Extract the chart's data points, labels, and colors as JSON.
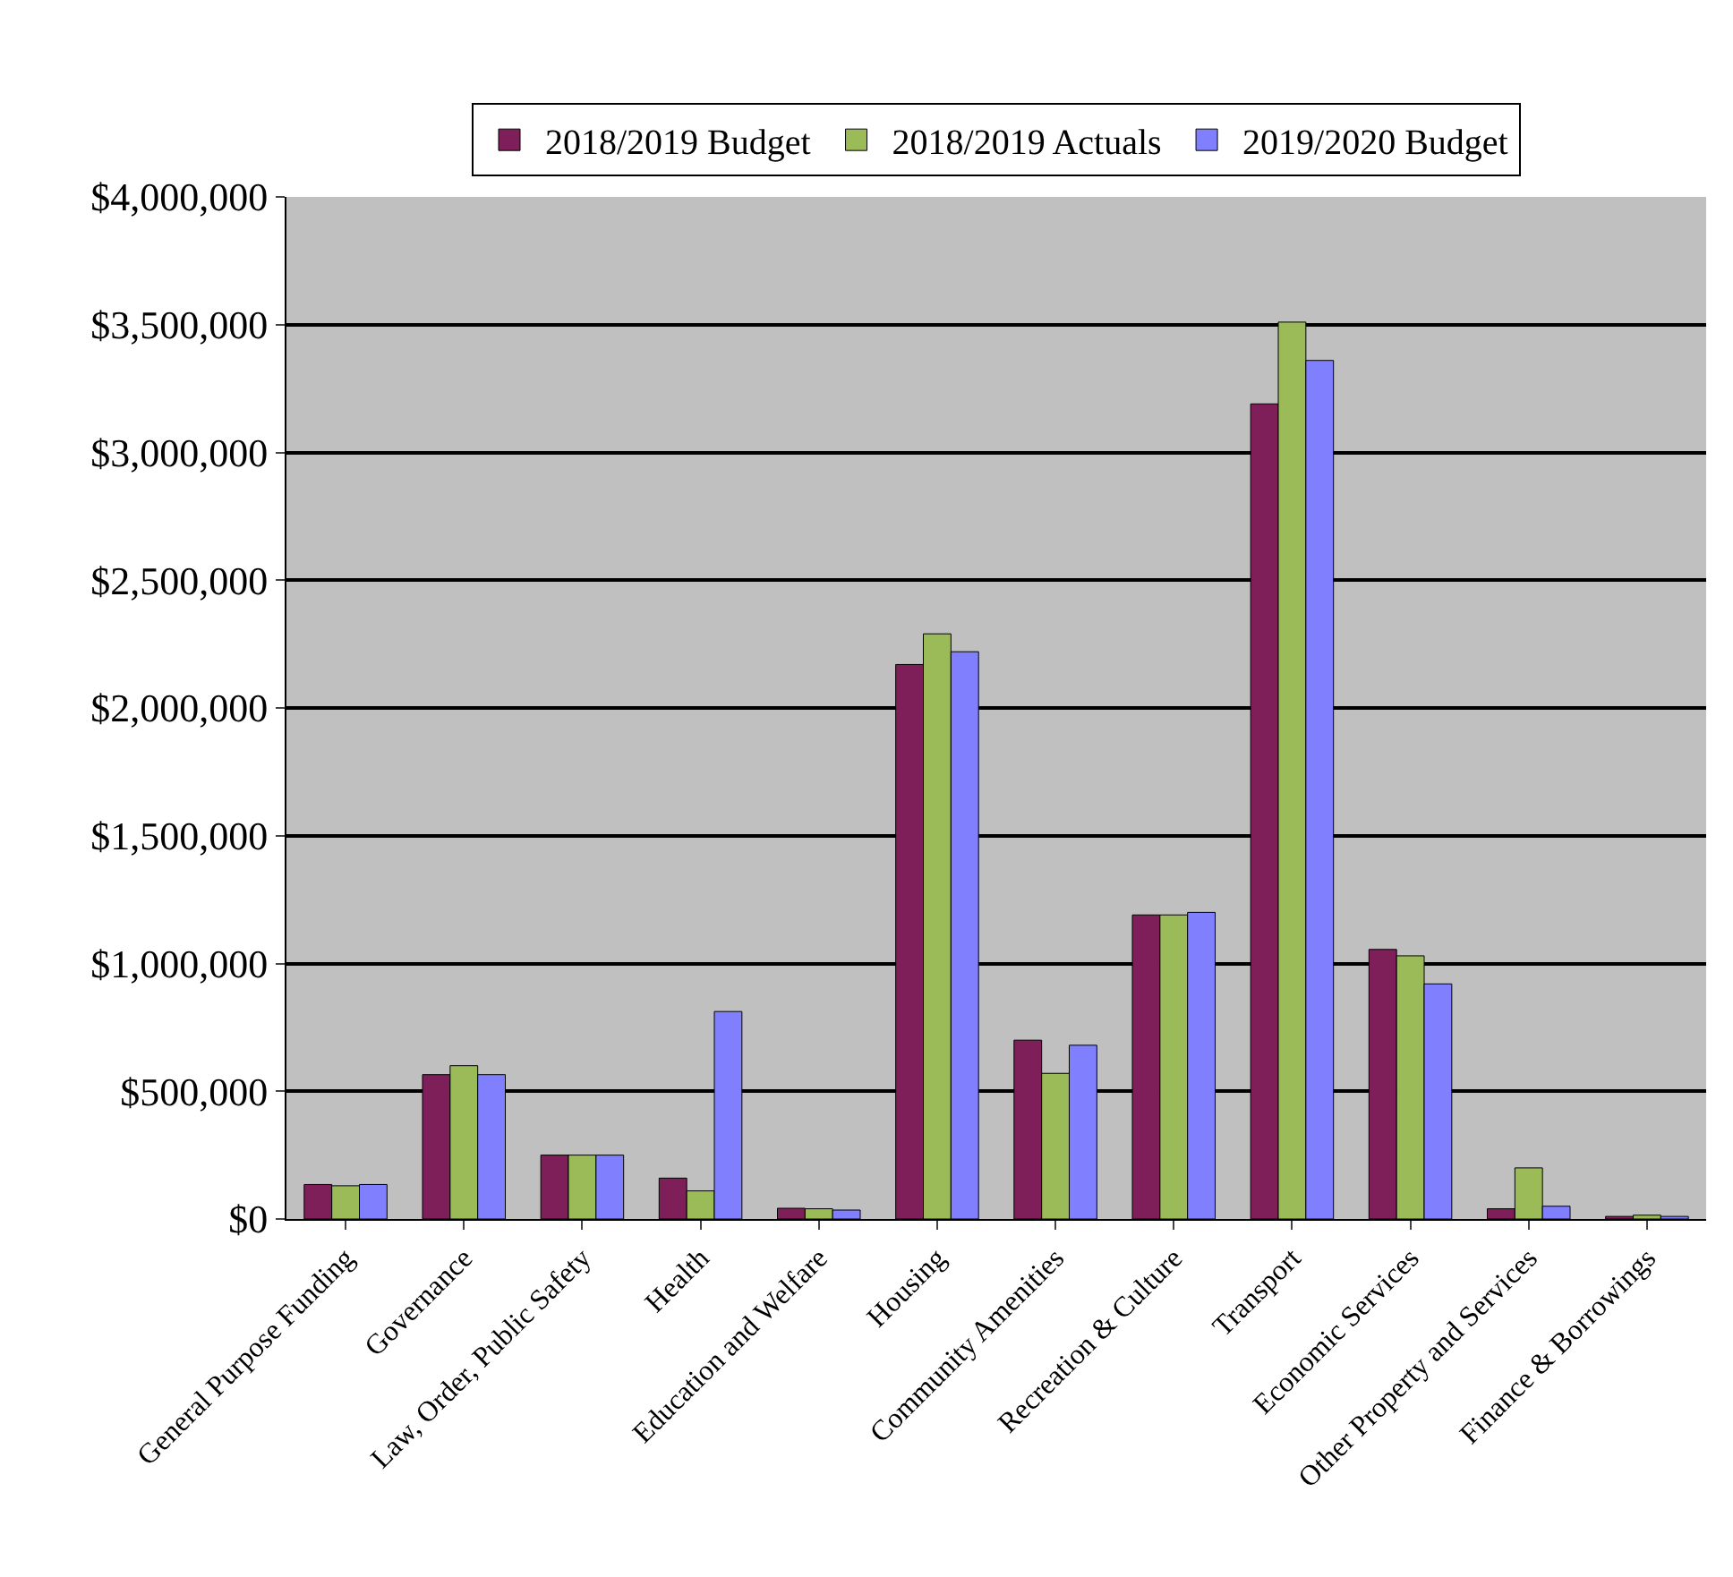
{
  "chart_data": {
    "type": "bar",
    "categories": [
      "General Purpose Funding",
      "Governance",
      "Law, Order, Public Safety",
      "Health",
      "Education and Welfare",
      "Housing",
      "Community Amenities",
      "Recreation & Culture",
      "Transport",
      "Economic Services",
      "Other Property and Services",
      "Finance & Borrowings"
    ],
    "series": [
      {
        "name": "2018/2019 Budget",
        "color": "#7f1f5a",
        "values": [
          135000,
          565000,
          250000,
          160000,
          42000,
          2170000,
          700000,
          1190000,
          3190000,
          1055000,
          40000,
          10000
        ]
      },
      {
        "name": "2018/2019 Actuals",
        "color": "#9bbb59",
        "values": [
          130000,
          600000,
          250000,
          110000,
          40000,
          2290000,
          570000,
          1190000,
          3510000,
          1030000,
          200000,
          15000
        ]
      },
      {
        "name": "2019/2020 Budget",
        "color": "#8080ff",
        "values": [
          135000,
          565000,
          250000,
          812000,
          35000,
          2220000,
          680000,
          1200000,
          3360000,
          920000,
          50000,
          10000
        ]
      }
    ],
    "ylim": [
      0,
      4000000
    ],
    "yticks": [
      {
        "value": 0,
        "label": "$0"
      },
      {
        "value": 500000,
        "label": "$500,000"
      },
      {
        "value": 1000000,
        "label": "$1,000,000"
      },
      {
        "value": 1500000,
        "label": "$1,500,000"
      },
      {
        "value": 2000000,
        "label": "$2,000,000"
      },
      {
        "value": 2500000,
        "label": "$2,500,000"
      },
      {
        "value": 3000000,
        "label": "$3,000,000"
      },
      {
        "value": 3500000,
        "label": "$3,500,000"
      },
      {
        "value": 4000000,
        "label": "$4,000,000"
      }
    ],
    "grid": "y",
    "legend": "top"
  }
}
